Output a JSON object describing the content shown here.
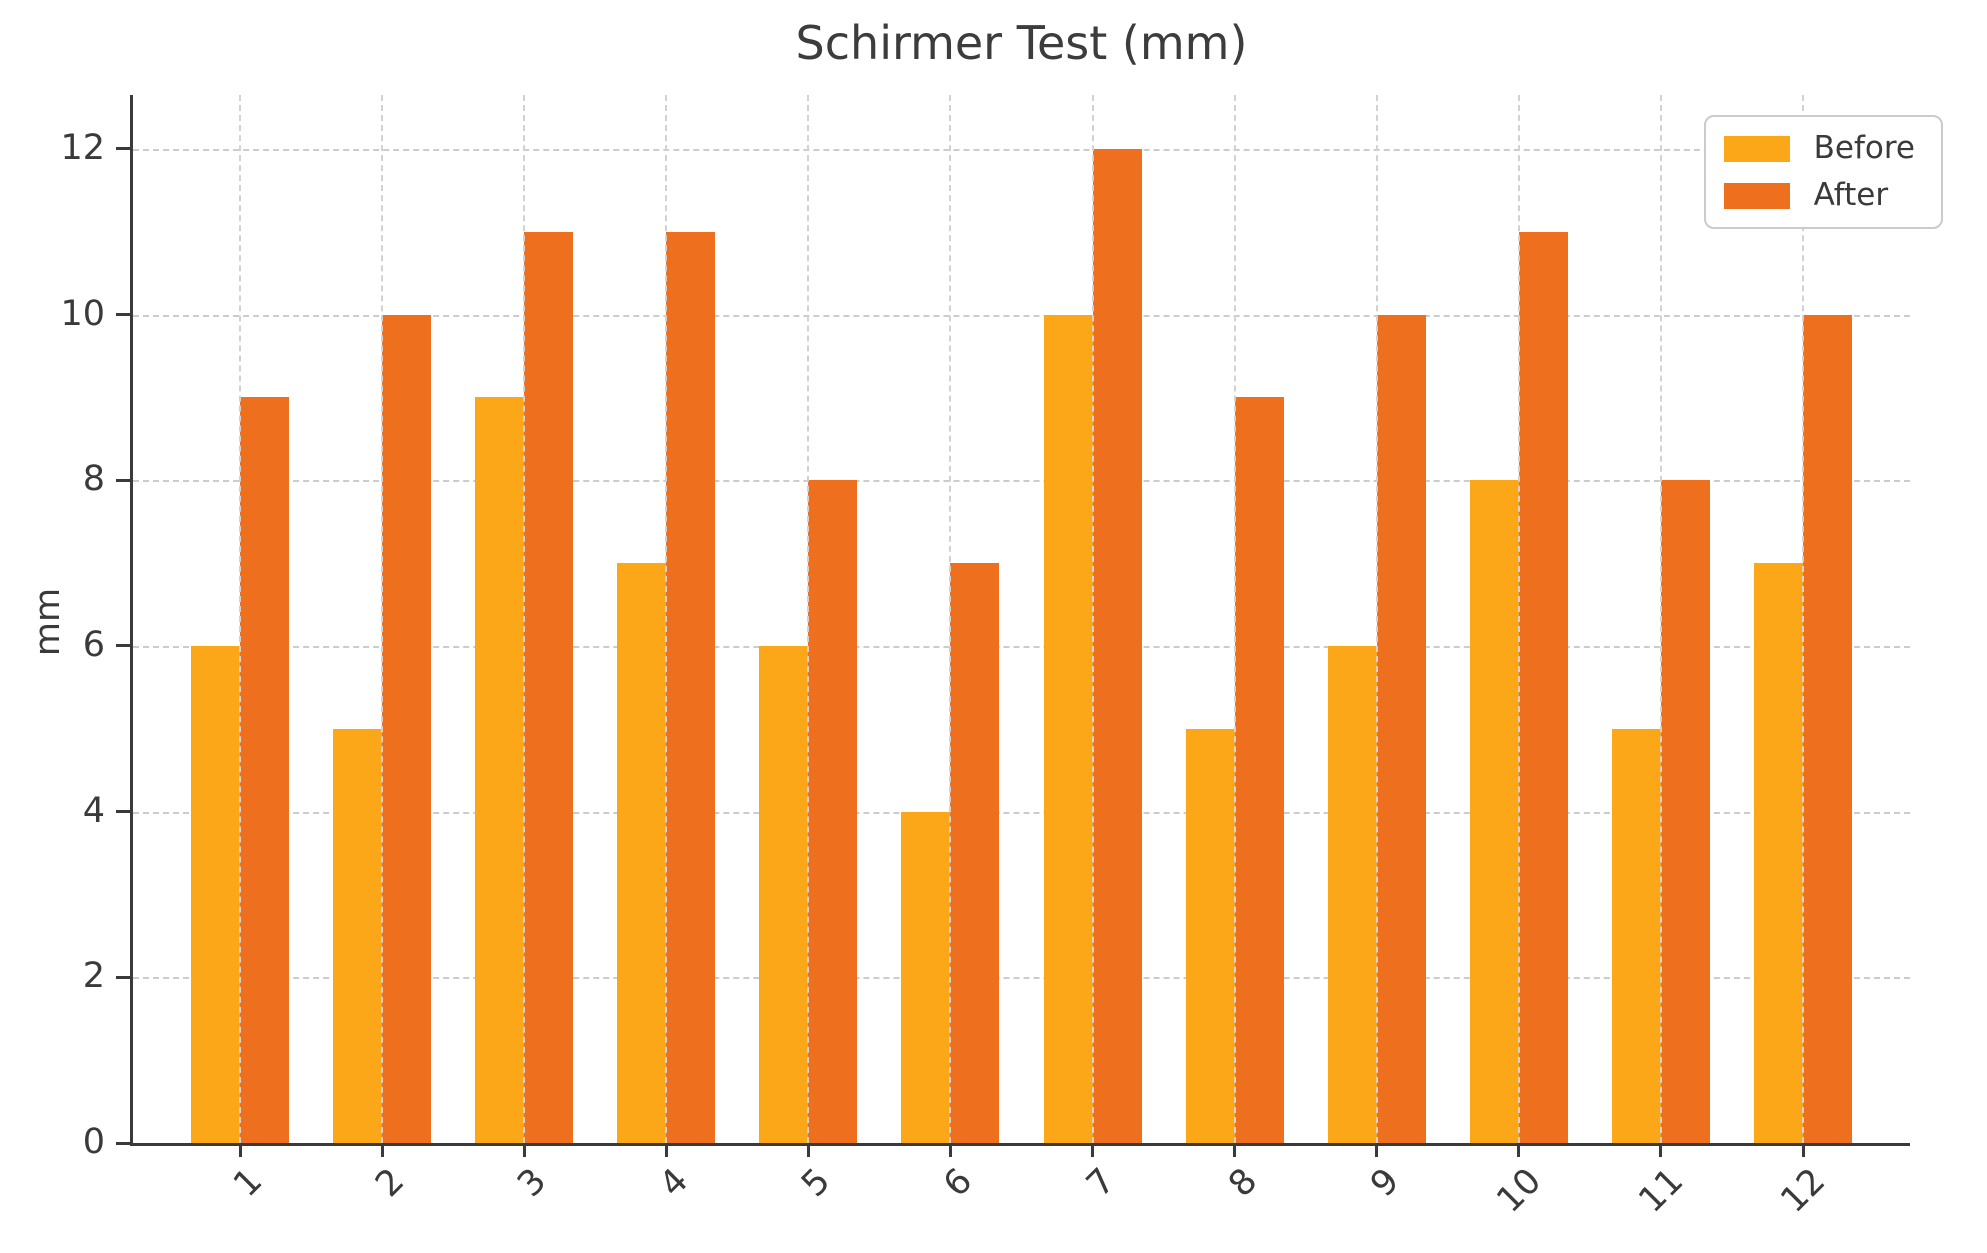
{
  "chart_data": {
    "type": "bar",
    "title": "Schirmer Test (mm)",
    "xlabel": "",
    "ylabel": "mm",
    "categories": [
      "1",
      "2",
      "3",
      "4",
      "5",
      "6",
      "7",
      "8",
      "9",
      "10",
      "11",
      "12"
    ],
    "series": [
      {
        "name": "Before",
        "color": "#FBA718",
        "values": [
          6,
          5,
          9,
          7,
          6,
          4,
          10,
          5,
          6,
          8,
          5,
          7
        ]
      },
      {
        "name": "After",
        "color": "#EE701F",
        "values": [
          9,
          10,
          11,
          11,
          8,
          7,
          12,
          9,
          10,
          11,
          8,
          10
        ]
      }
    ],
    "yticks": [
      0,
      2,
      4,
      6,
      8,
      10,
      12
    ],
    "ylim": [
      0,
      12.65
    ],
    "grid": "dashed-both-axes",
    "legend_position": "upper-right",
    "axis_color": "#3a3a3a",
    "grid_color": "#cccccc",
    "background_color": "#ffffff"
  }
}
